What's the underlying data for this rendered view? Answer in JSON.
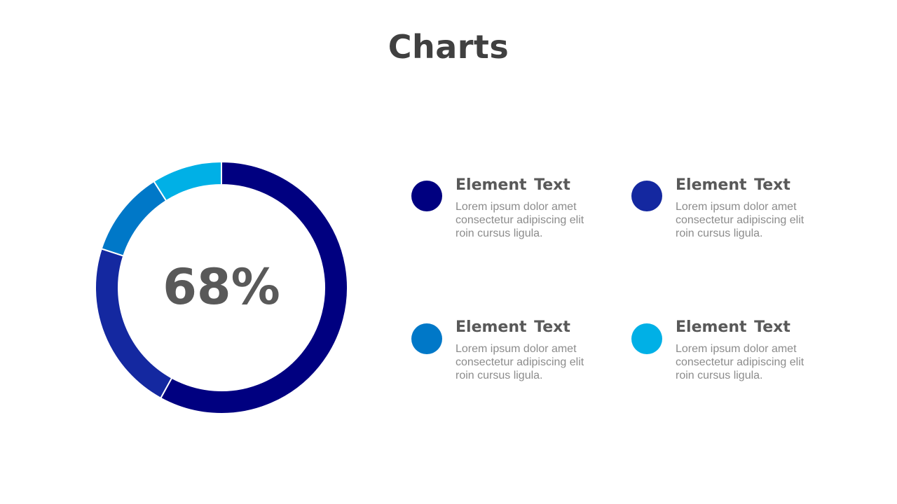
{
  "title": "Charts",
  "chart_data": {
    "type": "pie",
    "title": "Charts",
    "center_label": "68%",
    "slices": [
      {
        "value": 58,
        "color": "#000080"
      },
      {
        "value": 22,
        "color": "#1428a0"
      },
      {
        "value": 11,
        "color": "#0078c8"
      },
      {
        "value": 9,
        "color": "#00b0e6"
      }
    ]
  },
  "legend": [
    {
      "title": "Element  Text",
      "body": "Lorem ipsum dolor amet consectetur  adipiscing elit roin cursus  ligula.",
      "color": "#000080"
    },
    {
      "title": "Element  Text",
      "body": "Lorem ipsum dolor amet consectetur  adipiscing elit roin cursus  ligula.",
      "color": "#1428a0"
    },
    {
      "title": "Element  Text",
      "body": "Lorem ipsum dolor amet consectetur  adipiscing elit roin cursus  ligula.",
      "color": "#0078c8"
    },
    {
      "title": "Element  Text",
      "body": "Lorem ipsum dolor amet consectetur  adipiscing elit roin cursus  ligula.",
      "color": "#00b0e6"
    }
  ]
}
